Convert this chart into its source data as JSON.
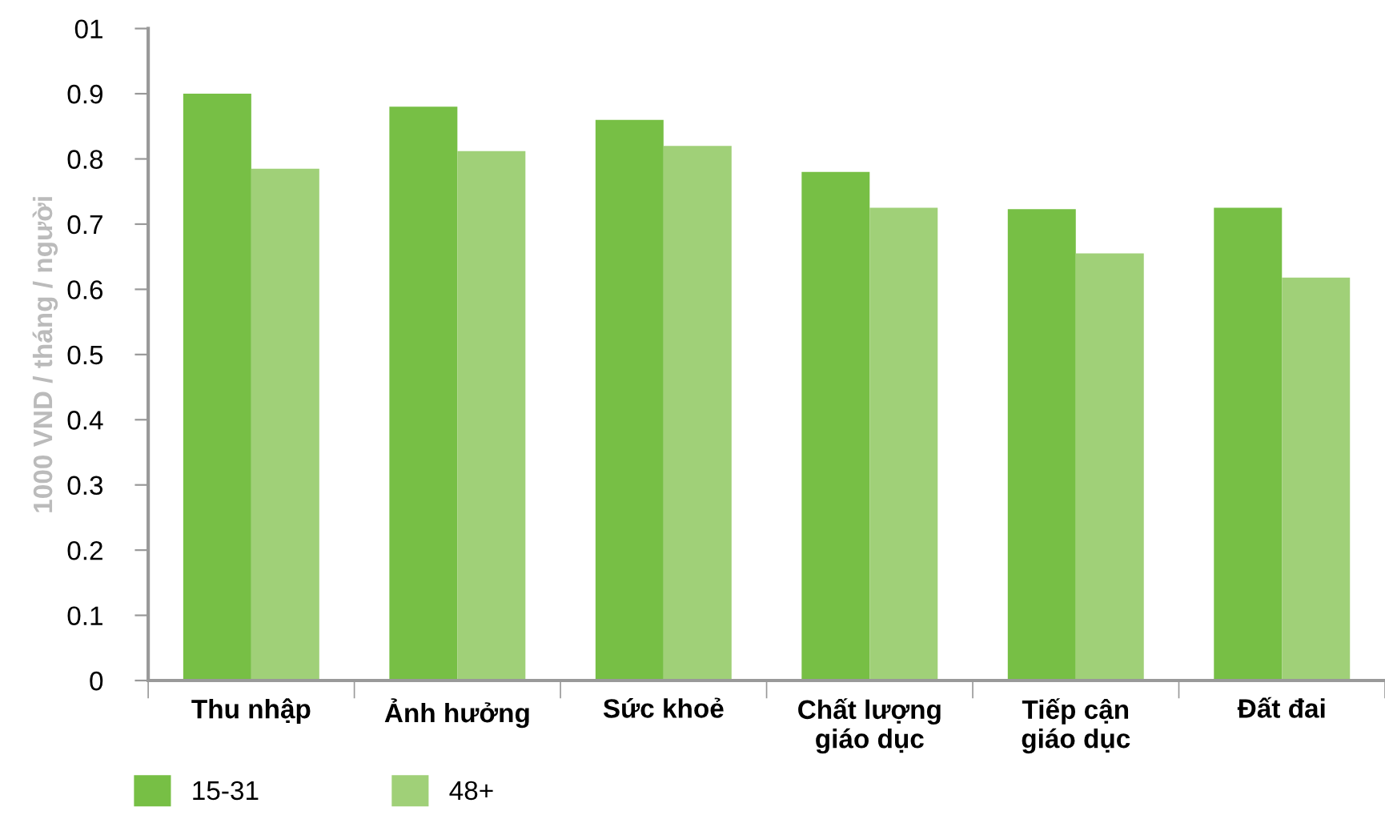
{
  "chart_data": {
    "type": "bar",
    "ylabel": "1000 VND / tháng / người",
    "categories": [
      "Thu nhập",
      "Ảnh hưởng",
      "Sức khoẻ",
      "Chất lượng\ngiáo dục",
      "Tiếp cận\ngiáo dục",
      "Đất đai"
    ],
    "series": [
      {
        "name": "15-31",
        "color": "#77bf45",
        "values": [
          0.9,
          0.88,
          0.86,
          0.78,
          0.723,
          0.725
        ]
      },
      {
        "name": "48+",
        "color": "#a0d078",
        "values": [
          0.785,
          0.812,
          0.82,
          0.725,
          0.655,
          0.618
        ]
      }
    ],
    "ylim": [
      0,
      1
    ],
    "yticks": [
      0,
      0.1,
      0.2,
      0.3,
      0.4,
      0.5,
      0.6,
      0.7,
      0.8,
      0.9,
      {
        "value": 1,
        "label": "01"
      }
    ],
    "grid": false,
    "legend": "bottom left"
  }
}
